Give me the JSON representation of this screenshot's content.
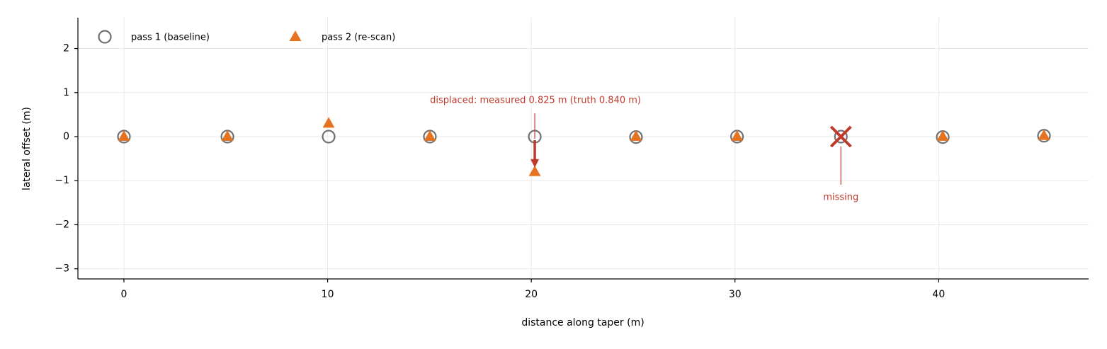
{
  "chart_data": {
    "type": "scatter",
    "x": [
      0,
      5.08,
      10.05,
      15.02,
      20.17,
      25.14,
      30.1,
      35.2,
      40.2,
      45.17
    ],
    "series": [
      {
        "name": "pass 1 (baseline)",
        "color": "#707070",
        "marker": "circle",
        "values": [
          0,
          0,
          0,
          0,
          0,
          -0.01,
          0,
          0,
          -0.01,
          0.02
        ]
      },
      {
        "name": "pass 2 (re-scan)",
        "color": "#e67320",
        "marker": "triangle",
        "values": [
          0,
          0,
          0.3,
          0,
          -0.8,
          0,
          0,
          null,
          0,
          0.02
        ]
      }
    ],
    "xlabel": "distance along taper (m)",
    "ylabel": "lateral offset (m)",
    "xlim": [
      -2.26,
      47.36
    ],
    "ylim": [
      -3.23,
      2.7
    ],
    "xticks": [
      0,
      10,
      20,
      30,
      40
    ],
    "yticks": [
      {
        "value": -3,
        "label": "−3"
      },
      {
        "value": -2,
        "label": "−2"
      },
      {
        "value": -1,
        "label": "−1"
      },
      0,
      1,
      2
    ],
    "grid": true,
    "legend": "upper left",
    "annotation_color": "#c0392b",
    "annotations": {
      "displaced": "displaced: measured 0.825 m  (truth 0.840 m)",
      "missing": "missing"
    }
  }
}
